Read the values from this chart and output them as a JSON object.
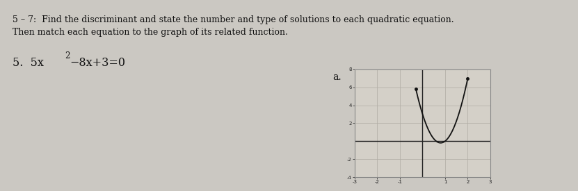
{
  "background_color": "#cbc8c2",
  "header_line1": "5 – 7:  Find the discriminant and state the number and type of solutions to each quadratic equation.",
  "header_line2": "Then match each equation to the graph of its related function.",
  "problem_number": "5.",
  "problem_eq_parts": [
    "5x",
    "2",
    "−8x+3=0"
  ],
  "label_a": "a.",
  "graph": {
    "xlim": [
      -3,
      3
    ],
    "ylim": [
      -4,
      8
    ],
    "xticks": [
      -3,
      -2,
      -1,
      1,
      2,
      3
    ],
    "yticks": [
      -4,
      -2,
      2,
      4,
      6,
      8
    ],
    "grid_color": "#b0aca4",
    "axis_color": "#222222",
    "curve_color": "#111111",
    "box_color": "#888888",
    "inner_bg": "#d4d0c8",
    "a": 5,
    "b": -8,
    "c": 3,
    "x_curve_start": -0.3,
    "x_curve_end": 2.0
  },
  "text_color": "#111111",
  "header_fontsize": 9.0,
  "problem_fontsize": 11.5
}
